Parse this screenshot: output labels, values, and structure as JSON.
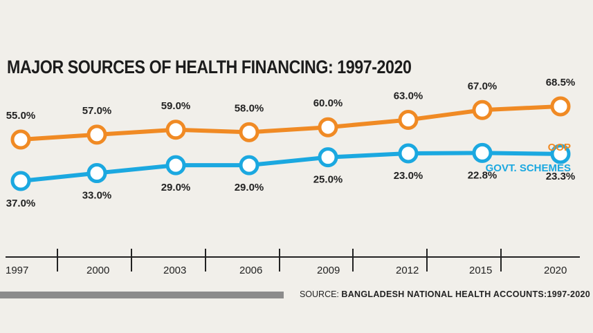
{
  "chart_data": {
    "type": "line",
    "title": "MAJOR SOURCES OF HEALTH FINANCING: 1997-2020",
    "categories": [
      "1997",
      "2000",
      "2003",
      "2006",
      "2009",
      "2012",
      "2015",
      "2020"
    ],
    "series": [
      {
        "name": "OOP",
        "color": "#f08a24",
        "values": [
          55.0,
          57.0,
          59.0,
          58.0,
          60.0,
          63.0,
          67.0,
          68.5
        ],
        "labels": [
          "55.0%",
          "57.0%",
          "59.0%",
          "58.0%",
          "60.0%",
          "63.0%",
          "67.0%",
          "68.5%"
        ]
      },
      {
        "name": "GOVT. SCHEMES",
        "color": "#1ba8e0",
        "values": [
          37.0,
          33.0,
          29.0,
          29.0,
          25.0,
          23.0,
          22.8,
          23.3
        ],
        "labels": [
          "37.0%",
          "33.0%",
          "29.0%",
          "29.0%",
          "25.0%",
          "23.0%",
          "22.8%",
          "23.3%"
        ]
      }
    ],
    "legend_placement": "right",
    "grid": false
  },
  "source": {
    "prefix": "SOURCE:",
    "text": "BANGLADESH NATIONAL HEALTH ACCOUNTS:1997-2020"
  }
}
